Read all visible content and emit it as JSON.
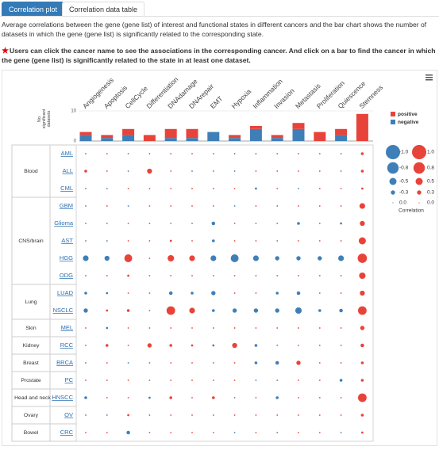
{
  "tabs": [
    "Correlation plot",
    "Correlation data table"
  ],
  "description": "Average correlations between the gene (gene list) of interest and functional states in different cancers and the bar chart shows the number of datasets in which the gene (gene list) is significantly related to the corresponding state.",
  "note": "Users can click the cancer name to see the associations in the corresponding cancer. And click on a bar to find the cancer in which the gene (gene list) is significantly related to the state in at least one dataset.",
  "chart_data": {
    "type": "bubble_matrix",
    "states": [
      "Angiogenesis",
      "Apoptosis",
      "CellCycle",
      "Differentiation",
      "DNAdamage",
      "DNArepair",
      "EMT",
      "Hypoxia",
      "Inflammation",
      "Invasion",
      "Metastasis",
      "Proliferation",
      "Quiescence",
      "Stemness"
    ],
    "bar_chart": {
      "type": "bar",
      "y_label": "No. significant datasets",
      "ylim": [
        0,
        10
      ],
      "yticks": [
        0,
        10
      ],
      "series": [
        {
          "name": "positive",
          "color": "#e8433a",
          "values": [
            1,
            1,
            2,
            2,
            3,
            3,
            0,
            1,
            1,
            1,
            2,
            3,
            2,
            9
          ]
        },
        {
          "name": "negative",
          "color": "#3f7fb8",
          "values": [
            2,
            1,
            2,
            0,
            1,
            1,
            3,
            1,
            4,
            1,
            4,
            0,
            2,
            0
          ]
        }
      ]
    },
    "positive_color": "#e8433a",
    "negative_color": "#3f7fb8",
    "groups": [
      {
        "name": "Blood",
        "rows": [
          {
            "name": "AML",
            "values": [
              0.05,
              0.08,
              -0.08,
              0.1,
              0.1,
              0.08,
              -0.08,
              -0.1,
              -0.08,
              0.05,
              0.08,
              0.05,
              0.08,
              0.2
            ]
          },
          {
            "name": "ALL",
            "values": [
              0.2,
              0.1,
              -0.1,
              0.35,
              0.1,
              -0.1,
              0.1,
              -0.1,
              0.05,
              0.1,
              0.1,
              0.1,
              -0.08,
              0.2
            ]
          },
          {
            "name": "CML",
            "values": [
              -0.08,
              -0.05,
              0.08,
              0.05,
              0.05,
              0.08,
              0.05,
              0.05,
              -0.15,
              0.05,
              -0.1,
              0.08,
              0.05,
              0.15
            ]
          }
        ]
      },
      {
        "name": "CNS/brain",
        "rows": [
          {
            "name": "GBM",
            "values": [
              -0.1,
              0.08,
              -0.05,
              0.05,
              0.1,
              0.08,
              0.1,
              -0.05,
              0.08,
              -0.08,
              0.1,
              0.05,
              0.1,
              0.4
            ]
          },
          {
            "name": "Glioma",
            "values": [
              0.1,
              0.08,
              0.1,
              0.05,
              0.1,
              -0.1,
              -0.25,
              0.08,
              -0.1,
              0.08,
              -0.2,
              -0.08,
              -0.15,
              0.35
            ]
          },
          {
            "name": "AST",
            "values": [
              -0.1,
              -0.08,
              0.1,
              0.05,
              0.15,
              0.1,
              -0.2,
              0.1,
              0.1,
              -0.1,
              0.1,
              0.05,
              0.1,
              0.5
            ]
          },
          {
            "name": "HGG",
            "values": [
              -0.4,
              -0.35,
              0.55,
              0.05,
              0.45,
              0.4,
              -0.4,
              -0.55,
              -0.4,
              -0.3,
              -0.3,
              -0.3,
              -0.4,
              0.65
            ]
          },
          {
            "name": "ODG",
            "values": [
              0.1,
              0.05,
              0.15,
              0.05,
              0.1,
              0.1,
              -0.1,
              0.1,
              0.1,
              0.05,
              0.1,
              0.05,
              0.1,
              0.45
            ]
          }
        ]
      },
      {
        "name": "Lung",
        "rows": [
          {
            "name": "LUAD",
            "values": [
              -0.2,
              -0.15,
              0.1,
              0.05,
              -0.25,
              -0.2,
              -0.3,
              0.08,
              0.1,
              -0.2,
              -0.25,
              -0.1,
              0.1,
              0.35
            ]
          },
          {
            "name": "NSCLC",
            "values": [
              -0.3,
              0.15,
              0.2,
              0.05,
              0.6,
              0.4,
              -0.2,
              -0.3,
              -0.3,
              -0.3,
              -0.45,
              -0.2,
              -0.25,
              0.6
            ]
          }
        ]
      },
      {
        "name": "Skin",
        "rows": [
          {
            "name": "MEL",
            "values": [
              0.1,
              -0.15,
              0.08,
              0.05,
              0.1,
              0.05,
              0.08,
              0.05,
              0.05,
              0.05,
              0.08,
              0.05,
              0.05,
              0.3
            ]
          }
        ]
      },
      {
        "name": "Kidney",
        "rows": [
          {
            "name": "RCC",
            "values": [
              0.1,
              0.2,
              0.1,
              0.3,
              0.2,
              0.15,
              -0.15,
              0.35,
              -0.2,
              0.1,
              0.1,
              0.05,
              0.1,
              0.25
            ]
          }
        ]
      },
      {
        "name": "Breast",
        "rows": [
          {
            "name": "BRCA",
            "values": [
              -0.08,
              0.08,
              -0.05,
              0.1,
              0.05,
              0.08,
              0.08,
              0.05,
              -0.2,
              -0.25,
              0.3,
              0.08,
              0.1,
              0.2
            ]
          }
        ]
      },
      {
        "name": "Prostate",
        "rows": [
          {
            "name": "PC",
            "values": [
              0.05,
              0.08,
              0.05,
              -0.1,
              0.05,
              0.08,
              0.05,
              0.05,
              -0.08,
              -0.1,
              0.1,
              0.05,
              -0.2,
              0.2
            ]
          }
        ]
      },
      {
        "name": "Head and neck",
        "rows": [
          {
            "name": "HNSCC",
            "values": [
              -0.2,
              0.1,
              0.1,
              -0.15,
              0.2,
              0.1,
              0.2,
              -0.1,
              0.1,
              -0.2,
              0.1,
              0.08,
              0.1,
              0.6
            ]
          }
        ]
      },
      {
        "name": "Ovary",
        "rows": [
          {
            "name": "OV",
            "values": [
              -0.05,
              -0.08,
              0.15,
              0.1,
              0.08,
              0.05,
              0.05,
              0.05,
              0.05,
              0.08,
              0.05,
              0.08,
              0.05,
              0.2
            ]
          }
        ]
      },
      {
        "name": "Bowel",
        "rows": [
          {
            "name": "CRC",
            "values": [
              0.1,
              0.08,
              -0.25,
              0.1,
              0.08,
              0.1,
              0.05,
              -0.1,
              0.08,
              -0.1,
              0.08,
              0.05,
              -0.08,
              0.15
            ]
          }
        ]
      }
    ],
    "size_legend": {
      "title": "Correlation",
      "negative": [
        {
          "value": -1.0,
          "label": "-1.0"
        },
        {
          "value": -0.8,
          "label": "-0.8"
        },
        {
          "value": -0.5,
          "label": "-0.5"
        },
        {
          "value": -0.3,
          "label": "-0.3"
        },
        {
          "value": 0,
          "label": "0.0"
        }
      ],
      "positive": [
        {
          "value": 1.0,
          "label": "1.0"
        },
        {
          "value": 0.8,
          "label": "0.8"
        },
        {
          "value": 0.5,
          "label": "0.5"
        },
        {
          "value": 0.3,
          "label": "0.3"
        },
        {
          "value": 0,
          "label": "0.0"
        }
      ]
    }
  }
}
